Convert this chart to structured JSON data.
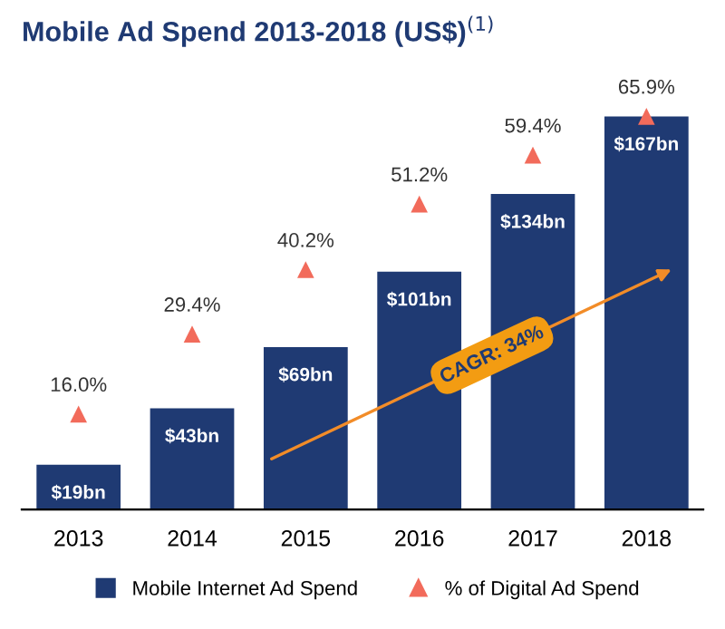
{
  "chart_data": {
    "type": "bar",
    "title": "Mobile Ad Spend 2013-2018 (US$)$^{(1)}$",
    "categories": [
      "2013",
      "2014",
      "2015",
      "2016",
      "2017",
      "2018"
    ],
    "series": [
      {
        "name": "Mobile Internet Ad Spend",
        "color": "#1f3a73",
        "values": [
          19,
          43,
          69,
          101,
          134,
          167
        ],
        "value_labels": [
          "$19bn",
          "$43bn",
          "$69bn",
          "$101bn",
          "$134bn",
          "$167bn"
        ]
      },
      {
        "name": "% of Digital Ad Spend",
        "type": "scatter",
        "axis": "y2",
        "marker": "triangle",
        "color": "#f26b5b",
        "values": [
          16.0,
          29.4,
          40.2,
          51.2,
          59.4,
          65.9
        ],
        "value_labels": [
          "16.0%",
          "29.4%",
          "40.2%",
          "51.2%",
          "59.4%",
          "65.9%"
        ]
      }
    ],
    "annotations": [
      "CAGR: 34%"
    ],
    "legend": "bottom",
    "grid": false
  }
}
